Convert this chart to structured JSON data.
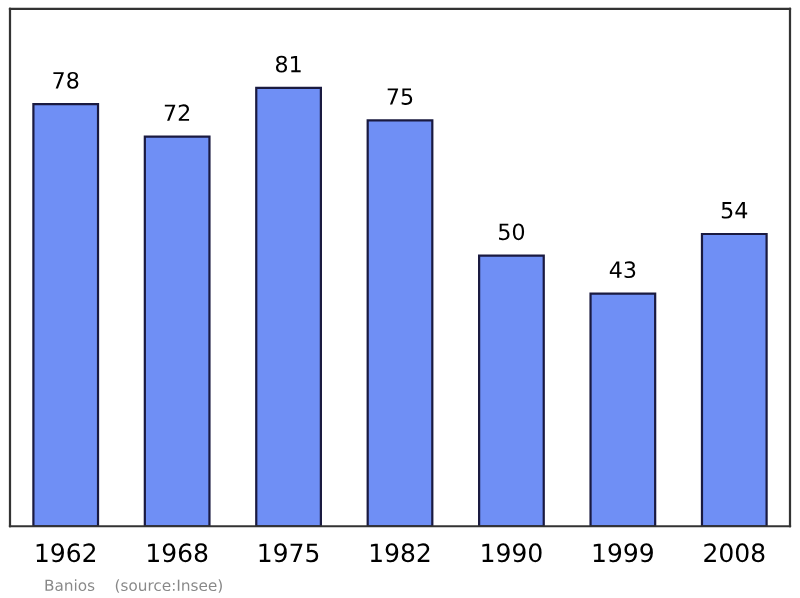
{
  "chart_data": {
    "type": "bar",
    "categories": [
      "1962",
      "1968",
      "1975",
      "1982",
      "1990",
      "1999",
      "2008"
    ],
    "values": [
      78,
      72,
      81,
      75,
      50,
      43,
      54
    ],
    "color": "#6f8ff5",
    "data_labels": true,
    "grid": false,
    "legend": false,
    "annotations": [
      "Banios    (source:Insee)"
    ]
  }
}
